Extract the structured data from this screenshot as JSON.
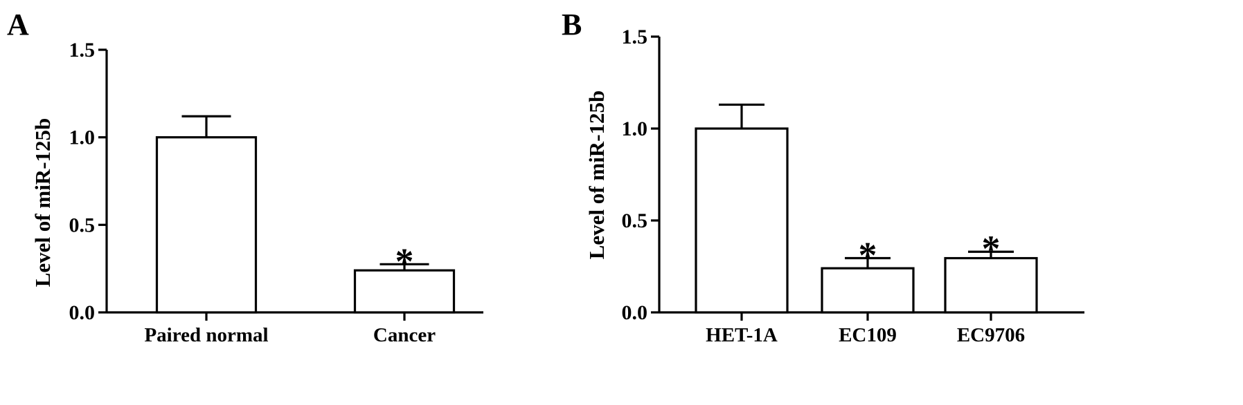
{
  "chart_data": [
    {
      "type": "bar",
      "panel_label": "A",
      "ylabel": "Level of miR-125b",
      "xlabel": "",
      "title": "",
      "ylim": [
        0,
        1.5
      ],
      "yticks": [
        0.0,
        0.5,
        1.0,
        1.5
      ],
      "ytick_labels": [
        "0.0",
        "0.5",
        "1.0",
        "1.5"
      ],
      "categories": [
        "Paired normal",
        "Cancer"
      ],
      "values": [
        1.0,
        0.24
      ],
      "error_upper": [
        0.12,
        0.035
      ],
      "significance": [
        "",
        "*"
      ],
      "bar_fill": "#ffffff",
      "bar_stroke": "#000000",
      "grid": false
    },
    {
      "type": "bar",
      "panel_label": "B",
      "ylabel": "Level of miR-125b",
      "xlabel": "",
      "title": "",
      "ylim": [
        0,
        1.5
      ],
      "yticks": [
        0.0,
        0.5,
        1.0,
        1.5
      ],
      "ytick_labels": [
        "0.0",
        "0.5",
        "1.0",
        "1.5"
      ],
      "categories": [
        "HET-1A",
        "EC109",
        "EC9706"
      ],
      "values": [
        1.0,
        0.24,
        0.295
      ],
      "error_upper": [
        0.13,
        0.055,
        0.035
      ],
      "significance": [
        "",
        "*",
        "*"
      ],
      "bar_fill": "#ffffff",
      "bar_stroke": "#000000",
      "grid": false
    }
  ]
}
